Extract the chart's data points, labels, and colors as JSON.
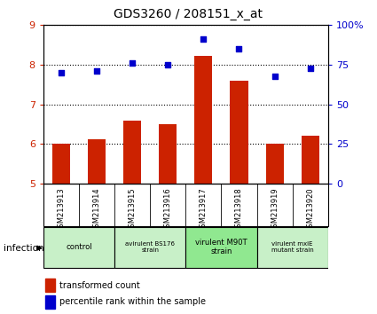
{
  "title": "GDS3260 / 208151_x_at",
  "samples": [
    "GSM213913",
    "GSM213914",
    "GSM213915",
    "GSM213916",
    "GSM213917",
    "GSM213918",
    "GSM213919",
    "GSM213920"
  ],
  "bar_values": [
    6.02,
    6.12,
    6.6,
    6.5,
    8.22,
    7.6,
    6.0,
    6.22
  ],
  "scatter_values": [
    70,
    71,
    76,
    75,
    91,
    85,
    68,
    73
  ],
  "ylim_left": [
    5,
    9
  ],
  "ylim_right": [
    0,
    100
  ],
  "yticks_left": [
    5,
    6,
    7,
    8,
    9
  ],
  "yticks_right": [
    0,
    25,
    50,
    75,
    100
  ],
  "right_tick_labels": [
    "0",
    "25",
    "50",
    "75",
    "100%"
  ],
  "bar_color": "#cc2200",
  "scatter_color": "#0000cc",
  "groups": [
    {
      "label": "control",
      "start": 0,
      "end": 2,
      "color": "#c8f0c8",
      "fontsize": 8.5
    },
    {
      "label": "avirulent BS176\nstrain",
      "start": 2,
      "end": 4,
      "color": "#c8f0c8",
      "fontsize": 7
    },
    {
      "label": "virulent M90T\nstrain",
      "start": 4,
      "end": 6,
      "color": "#90e890",
      "fontsize": 8.5
    },
    {
      "label": "virulent mxiE\nmutant strain",
      "start": 6,
      "end": 8,
      "color": "#c8f0c8",
      "fontsize": 7
    }
  ],
  "infection_label": "infection",
  "legend_bar_label": "transformed count",
  "legend_scatter_label": "percentile rank within the sample",
  "tick_area_color": "#d0d0d0",
  "bar_width": 0.5
}
